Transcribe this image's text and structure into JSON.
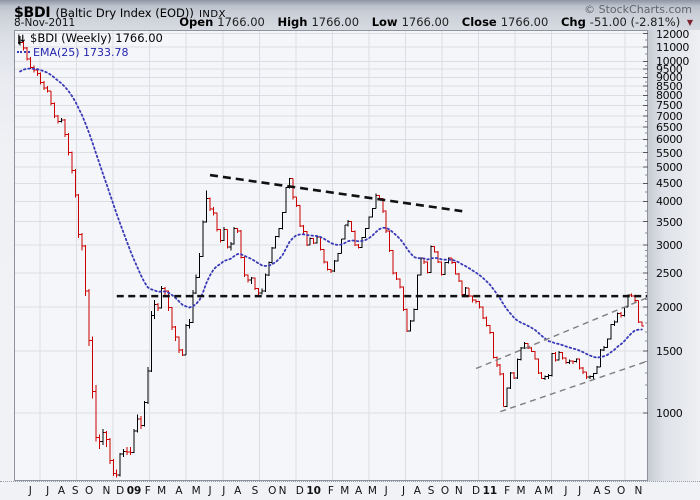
{
  "header": {
    "symbol": "$BDI",
    "name": "(Baltic Dry Index (EOD))",
    "exchange": "INDX",
    "date": "8-Nov-2011",
    "copyright": "© StockCharts.com",
    "quote": {
      "open_l": "Open",
      "open_v": "1766.00",
      "high_l": "High",
      "high_v": "1766.00",
      "low_l": "Low",
      "low_v": "1766.00",
      "close_l": "Close",
      "close_v": "1766.00",
      "chg_l": "Chg",
      "chg_v": "-51.00 (-2.81%)"
    }
  },
  "legend": {
    "bdi_label": "$BDI (Weekly) 1766.00",
    "ema_label": "EMA(25) 1733.78"
  },
  "colors": {
    "bar_up": "#000000",
    "bar_down": "#cc0000",
    "ema": "#3a3ab8",
    "grid": "#dcdee4",
    "plot_bg": "#f5f6f9",
    "plot_border": "#8d929c",
    "resistance": "#111111",
    "trendline": "#111111",
    "channel": "#7e7e7e",
    "neg_arrow": "#7d2430"
  },
  "chart_data": {
    "type": "bar",
    "subtype": "weekly-ohlc-log-scale",
    "title": "$BDI Baltic Dry Index (EOD) INDX - Weekly",
    "last_close": 1766.0,
    "last_change": "-51.00 (-2.81%)",
    "ema25_last": 1733.78,
    "ema25_seed": 9200,
    "y_axis": {
      "scale": "log",
      "ticks": [
        12000,
        11000,
        10000,
        9500,
        9000,
        8500,
        8000,
        7500,
        7000,
        6500,
        6000,
        5500,
        5000,
        4500,
        4000,
        3500,
        3000,
        2500,
        2000,
        1500,
        1000
      ]
    },
    "x_axis": {
      "labels": [
        {
          "t": "J",
          "w": 4
        },
        {
          "t": "J",
          "w": 9
        },
        {
          "t": "A",
          "w": 13
        },
        {
          "t": "S",
          "w": 17
        },
        {
          "t": "O",
          "w": 21
        },
        {
          "t": "N",
          "w": 26
        },
        {
          "t": "D",
          "w": 30
        },
        {
          "t": "09",
          "w": 34,
          "b": 1
        },
        {
          "t": "F",
          "w": 38
        },
        {
          "t": "M",
          "w": 42
        },
        {
          "t": "A",
          "w": 47
        },
        {
          "t": "M",
          "w": 52
        },
        {
          "t": "J",
          "w": 56
        },
        {
          "t": "J",
          "w": 60
        },
        {
          "t": "A",
          "w": 64
        },
        {
          "t": "S",
          "w": 69
        },
        {
          "t": "O",
          "w": 74
        },
        {
          "t": "N",
          "w": 77
        },
        {
          "t": "D",
          "w": 82
        },
        {
          "t": "10",
          "w": 86,
          "b": 1
        },
        {
          "t": "F",
          "w": 91
        },
        {
          "t": "M",
          "w": 95
        },
        {
          "t": "A",
          "w": 99
        },
        {
          "t": "M",
          "w": 103
        },
        {
          "t": "J",
          "w": 107
        },
        {
          "t": "J",
          "w": 112
        },
        {
          "t": "A",
          "w": 116
        },
        {
          "t": "S",
          "w": 120
        },
        {
          "t": "O",
          "w": 124
        },
        {
          "t": "N",
          "w": 128
        },
        {
          "t": "D",
          "w": 133
        },
        {
          "t": "11",
          "w": 137,
          "b": 1
        },
        {
          "t": "F",
          "w": 142
        },
        {
          "t": "M",
          "w": 146
        },
        {
          "t": "A",
          "w": 151
        },
        {
          "t": "M",
          "w": 154
        },
        {
          "t": "J",
          "w": 159
        },
        {
          "t": "J",
          "w": 163
        },
        {
          "t": "A",
          "w": 168
        },
        {
          "t": "S",
          "w": 171
        },
        {
          "t": "O",
          "w": 175
        },
        {
          "t": "N",
          "w": 180
        }
      ]
    },
    "weeks_format": "[high, low, close] weekly, Jun-2008 to 8-Nov-2011",
    "weeks": [
      [
        11793,
        11100,
        11300
      ],
      [
        11450,
        10750,
        10900
      ],
      [
        11000,
        10050,
        10150
      ],
      [
        10300,
        9500,
        9600
      ],
      [
        9750,
        9300,
        9450
      ],
      [
        9500,
        9100,
        9250
      ],
      [
        9300,
        8600,
        8700
      ],
      [
        8800,
        8300,
        8400
      ],
      [
        8500,
        8150,
        8250
      ],
      [
        8250,
        7500,
        7600
      ],
      [
        7650,
        6900,
        7000
      ],
      [
        7050,
        6650,
        6746
      ],
      [
        6900,
        6700,
        6809
      ],
      [
        6850,
        6100,
        6200
      ],
      [
        6250,
        5400,
        5500
      ],
      [
        5550,
        4800,
        4900
      ],
      [
        4950,
        4100,
        4170
      ],
      [
        4200,
        3150,
        3220
      ],
      [
        3250,
        2900,
        2990
      ],
      [
        3000,
        2150,
        2220
      ],
      [
        2250,
        1550,
        1610
      ],
      [
        1650,
        1100,
        1150
      ],
      [
        1200,
        830,
        851
      ],
      [
        870,
        790,
        830
      ],
      [
        900,
        810,
        880
      ],
      [
        890,
        800,
        840
      ],
      [
        850,
        715,
        733
      ],
      [
        740,
        663,
        672
      ],
      [
        690,
        655,
        666
      ],
      [
        770,
        660,
        764
      ],
      [
        790,
        750,
        776
      ],
      [
        800,
        760,
        774
      ],
      [
        800,
        760,
        773
      ],
      [
        900,
        770,
        890
      ],
      [
        990,
        880,
        960
      ],
      [
        980,
        900,
        920
      ],
      [
        1080,
        915,
        1070
      ],
      [
        1350,
        1060,
        1316
      ],
      [
        1950,
        1310,
        1895
      ],
      [
        2099,
        1850,
        2034
      ],
      [
        2055,
        1950,
        1986
      ],
      [
        2298,
        1980,
        2260
      ],
      [
        2280,
        2150,
        2221
      ],
      [
        2230,
        1950,
        1996
      ],
      [
        2000,
        1720,
        1758
      ],
      [
        1770,
        1600,
        1646
      ],
      [
        1650,
        1480,
        1511
      ],
      [
        1520,
        1453,
        1463
      ],
      [
        1790,
        1460,
        1772
      ],
      [
        1850,
        1740,
        1806
      ],
      [
        2240,
        1800,
        2194
      ],
      [
        2480,
        2180,
        2432
      ],
      [
        2850,
        2420,
        2786
      ],
      [
        3530,
        2780,
        3494
      ],
      [
        4291,
        3480,
        4070
      ],
      [
        4100,
        3750,
        3809
      ],
      [
        3850,
        3650,
        3703
      ],
      [
        3720,
        3280,
        3327
      ],
      [
        3340,
        3050,
        3093
      ],
      [
        3380,
        3080,
        3324
      ],
      [
        3330,
        2940,
        2961
      ],
      [
        3060,
        2900,
        3020
      ],
      [
        3380,
        3010,
        3350
      ],
      [
        3360,
        3250,
        3296
      ],
      [
        3310,
        2750,
        2772
      ],
      [
        2790,
        2440,
        2468
      ],
      [
        2480,
        2350,
        2388
      ],
      [
        2440,
        2330,
        2421
      ],
      [
        2430,
        2240,
        2262
      ],
      [
        2270,
        2163,
        2195
      ],
      [
        2260,
        2170,
        2220
      ],
      [
        2490,
        2210,
        2468
      ],
      [
        2700,
        2450,
        2678
      ],
      [
        2970,
        2660,
        2951
      ],
      [
        3190,
        2940,
        3172
      ],
      [
        3360,
        3160,
        3344
      ],
      [
        3730,
        3330,
        3712
      ],
      [
        4400,
        3700,
        4381
      ],
      [
        4661,
        4350,
        4643
      ],
      [
        4650,
        4050,
        4112
      ],
      [
        4120,
        3850,
        3886
      ],
      [
        3900,
        3380,
        3404
      ],
      [
        3420,
        3240,
        3278
      ],
      [
        3290,
        2990,
        3005
      ],
      [
        3160,
        3000,
        3140
      ],
      [
        3150,
        3020,
        3040
      ],
      [
        3180,
        3030,
        3170
      ],
      [
        3180,
        2900,
        2920
      ],
      [
        2930,
        2660,
        2686
      ],
      [
        2700,
        2540,
        2561
      ],
      [
        2570,
        2501,
        2531
      ],
      [
        2720,
        2520,
        2706
      ],
      [
        2850,
        2700,
        2841
      ],
      [
        3130,
        2840,
        3122
      ],
      [
        3430,
        3110,
        3420
      ],
      [
        3535,
        3390,
        3510
      ],
      [
        3520,
        3270,
        3287
      ],
      [
        3300,
        2990,
        3009
      ],
      [
        3020,
        2940,
        2952
      ],
      [
        3170,
        2950,
        3155
      ],
      [
        3360,
        3150,
        3351
      ],
      [
        3620,
        3340,
        3605
      ],
      [
        3830,
        3600,
        3821
      ],
      [
        4209,
        3810,
        4160
      ],
      [
        4170,
        4020,
        4078
      ],
      [
        4090,
        3710,
        3758
      ],
      [
        3770,
        3250,
        3292
      ],
      [
        3300,
        2870,
        2897
      ],
      [
        2910,
        2480,
        2502
      ],
      [
        2520,
        2390,
        2406
      ],
      [
        2410,
        2260,
        2280
      ],
      [
        2290,
        1950,
        1967
      ],
      [
        1980,
        1700,
        1709
      ],
      [
        1840,
        1705,
        1826
      ],
      [
        1980,
        1820,
        1967
      ],
      [
        2480,
        1960,
        2468
      ],
      [
        2770,
        2460,
        2756
      ],
      [
        2760,
        2650,
        2692
      ],
      [
        2700,
        2490,
        2508
      ],
      [
        2995,
        2500,
        2980
      ],
      [
        2990,
        2860,
        2874
      ],
      [
        2890,
        2670,
        2688
      ],
      [
        2700,
        2460,
        2475
      ],
      [
        2690,
        2470,
        2678
      ],
      [
        2770,
        2660,
        2757
      ],
      [
        2760,
        2650,
        2678
      ],
      [
        2690,
        2480,
        2489
      ],
      [
        2500,
        2360,
        2371
      ],
      [
        2380,
        2150,
        2170
      ],
      [
        2280,
        2160,
        2267
      ],
      [
        2270,
        2140,
        2155
      ],
      [
        2160,
        2060,
        2094
      ],
      [
        2100,
        2050,
        2077
      ],
      [
        2080,
        1980,
        1999
      ],
      [
        2010,
        1850,
        1865
      ],
      [
        1880,
        1760,
        1773
      ],
      [
        1780,
        1680,
        1693
      ],
      [
        1700,
        1430,
        1439
      ],
      [
        1450,
        1350,
        1370
      ],
      [
        1380,
        1280,
        1292
      ],
      [
        1300,
        1043,
        1045
      ],
      [
        1180,
        1040,
        1178
      ],
      [
        1310,
        1170,
        1301
      ],
      [
        1310,
        1250,
        1258
      ],
      [
        1430,
        1250,
        1419
      ],
      [
        1540,
        1410,
        1531
      ],
      [
        1590,
        1520,
        1577
      ],
      [
        1580,
        1520,
        1530
      ],
      [
        1540,
        1490,
        1498
      ],
      [
        1500,
        1420,
        1423
      ],
      [
        1430,
        1290,
        1301
      ],
      [
        1310,
        1250,
        1254
      ],
      [
        1280,
        1240,
        1269
      ],
      [
        1290,
        1250,
        1280
      ],
      [
        1480,
        1270,
        1477
      ],
      [
        1490,
        1400,
        1413
      ],
      [
        1500,
        1410,
        1487
      ],
      [
        1490,
        1420,
        1432
      ],
      [
        1440,
        1380,
        1392
      ],
      [
        1420,
        1380,
        1405
      ],
      [
        1410,
        1380,
        1399
      ],
      [
        1430,
        1390,
        1423
      ],
      [
        1430,
        1330,
        1342
      ],
      [
        1350,
        1290,
        1307
      ],
      [
        1310,
        1250,
        1264
      ],
      [
        1280,
        1250,
        1268
      ],
      [
        1300,
        1250,
        1296
      ],
      [
        1360,
        1290,
        1350
      ],
      [
        1520,
        1350,
        1509
      ],
      [
        1550,
        1500,
        1536
      ],
      [
        1630,
        1530,
        1624
      ],
      [
        1790,
        1620,
        1788
      ],
      [
        1830,
        1770,
        1814
      ],
      [
        1930,
        1810,
        1920
      ],
      [
        1940,
        1870,
        1895
      ],
      [
        2010,
        1880,
        2000
      ],
      [
        2173,
        2000,
        2166
      ],
      [
        2190,
        2140,
        2153
      ],
      [
        2160,
        2050,
        2089
      ],
      [
        2090,
        1800,
        1817
      ],
      [
        1820,
        1760,
        1766
      ]
    ],
    "annotations": {
      "resistance_line": {
        "value": 2150,
        "from_week": 29,
        "to_week": 184,
        "style": "black-dashed-horizontal"
      },
      "downtrend_line": {
        "from": {
          "week": 56,
          "value": 4750
        },
        "to": {
          "week": 129,
          "value": 3750
        },
        "style": "black-dashed"
      },
      "channel_upper": {
        "from": {
          "week": 133,
          "value": 1338
        },
        "to": {
          "week": 184,
          "value": 2157
        },
        "style": "gray-dashed"
      },
      "channel_lower": {
        "from": {
          "week": 140,
          "value": 1009
        },
        "to": {
          "week": 184,
          "value": 1420
        },
        "style": "gray-dashed"
      }
    }
  }
}
